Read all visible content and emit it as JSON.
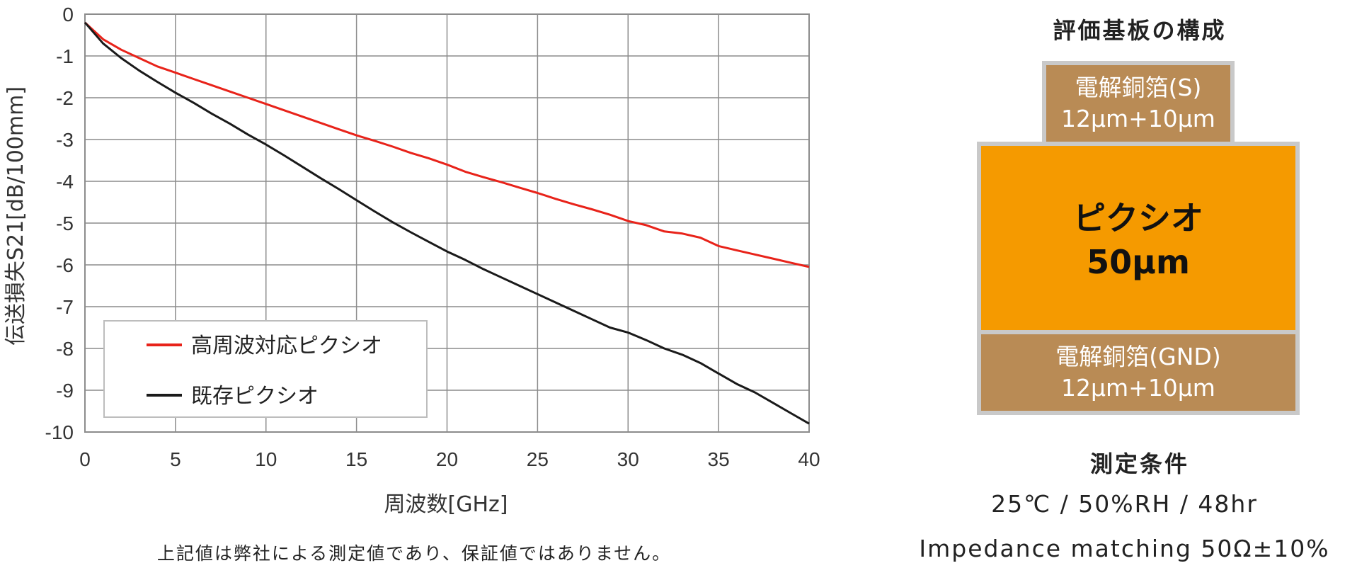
{
  "chart_data": {
    "type": "line",
    "xlabel": "周波数[GHz]",
    "ylabel": "伝送損失S21[dB/100mm]",
    "xlim": [
      0,
      40
    ],
    "ylim": [
      -10,
      0
    ],
    "x_ticks": [
      "0",
      "5",
      "10",
      "15",
      "20",
      "25",
      "30",
      "35",
      "40"
    ],
    "y_ticks": [
      "0",
      "-1",
      "-2",
      "-3",
      "-4",
      "-5",
      "-6",
      "-7",
      "-8",
      "-9",
      "-10"
    ],
    "grid": true,
    "legend_position": "bottom-left",
    "series": [
      {
        "name": "高周波対応ピクシオ",
        "color": "#e8231a",
        "x": [
          0,
          1,
          2,
          3,
          4,
          5,
          6,
          7,
          8,
          9,
          10,
          11,
          12,
          13,
          14,
          15,
          16,
          17,
          18,
          19,
          20,
          21,
          22,
          23,
          24,
          25,
          26,
          27,
          28,
          29,
          30,
          31,
          32,
          33,
          34,
          35,
          36,
          37,
          38,
          39,
          40
        ],
        "values": [
          -0.2,
          -0.6,
          -0.85,
          -1.05,
          -1.25,
          -1.4,
          -1.55,
          -1.7,
          -1.85,
          -2.0,
          -2.15,
          -2.3,
          -2.45,
          -2.6,
          -2.75,
          -2.9,
          -3.03,
          -3.17,
          -3.32,
          -3.45,
          -3.6,
          -3.77,
          -3.9,
          -4.02,
          -4.15,
          -4.28,
          -4.42,
          -4.55,
          -4.67,
          -4.8,
          -4.95,
          -5.05,
          -5.2,
          -5.25,
          -5.35,
          -5.55,
          -5.65,
          -5.75,
          -5.85,
          -5.95,
          -6.05
        ]
      },
      {
        "name": "既存ピクシオ",
        "color": "#1a1a1a",
        "x": [
          0,
          1,
          2,
          3,
          4,
          5,
          6,
          7,
          8,
          9,
          10,
          11,
          12,
          13,
          14,
          15,
          16,
          17,
          18,
          19,
          20,
          21,
          22,
          23,
          24,
          25,
          26,
          27,
          28,
          29,
          30,
          31,
          32,
          33,
          34,
          35,
          36,
          37,
          38,
          39,
          40
        ],
        "values": [
          -0.2,
          -0.7,
          -1.05,
          -1.35,
          -1.62,
          -1.88,
          -2.12,
          -2.38,
          -2.62,
          -2.88,
          -3.12,
          -3.38,
          -3.65,
          -3.92,
          -4.18,
          -4.45,
          -4.72,
          -4.98,
          -5.22,
          -5.45,
          -5.68,
          -5.88,
          -6.1,
          -6.3,
          -6.5,
          -6.7,
          -6.9,
          -7.1,
          -7.3,
          -7.5,
          -7.62,
          -7.8,
          -8.0,
          -8.15,
          -8.35,
          -8.6,
          -8.85,
          -9.05,
          -9.3,
          -9.55,
          -9.8
        ]
      }
    ]
  },
  "note": "上記値は弊社による測定値であり、保証値ではありません。",
  "stackup": {
    "title": "評価基板の構成",
    "top_layer": {
      "name": "電解銅箔(S)",
      "thickness": "12μm+10μm"
    },
    "core_layer": {
      "name": "ピクシオ",
      "thickness": "50μm"
    },
    "bottom_layer": {
      "name": "電解銅箔(GND)",
      "thickness": "12μm+10μm"
    },
    "colors": {
      "copper": "#b98b55",
      "core": "#f59a00",
      "border": "#c9c9c9"
    }
  },
  "conditions": {
    "title": "測定条件",
    "line1": "25℃ / 50%RH / 48hr",
    "line2": "Impedance matching 50Ω±10%"
  }
}
